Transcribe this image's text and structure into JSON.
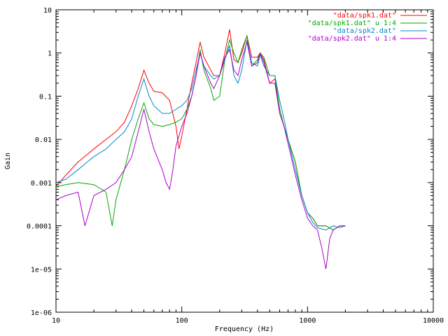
{
  "chart_data": {
    "type": "line",
    "title": "",
    "xlabel": "Frequency (Hz)",
    "ylabel": "Gain",
    "xscale": "log",
    "yscale": "log",
    "xlim": [
      10,
      10000
    ],
    "ylim": [
      1e-06,
      10
    ],
    "grid": false,
    "legend_position": "top-right",
    "x_ticks": [
      {
        "value": 10,
        "label": "10"
      },
      {
        "value": 100,
        "label": "100"
      },
      {
        "value": 1000,
        "label": "1000"
      },
      {
        "value": 10000,
        "label": "10000"
      }
    ],
    "y_ticks": [
      {
        "value": 10,
        "label": "10"
      },
      {
        "value": 1,
        "label": "1"
      },
      {
        "value": 0.1,
        "label": "0.1"
      },
      {
        "value": 0.01,
        "label": "0.01"
      },
      {
        "value": 0.001,
        "label": "0.001"
      },
      {
        "value": 0.0001,
        "label": "0.0001"
      },
      {
        "value": 1e-05,
        "label": "1e-05"
      },
      {
        "value": 1e-06,
        "label": "1e-06"
      }
    ],
    "series": [
      {
        "name": "\"data/spk1.dat\"",
        "color": "#ff0000",
        "points": [
          [
            10,
            0.0008
          ],
          [
            12,
            0.0015
          ],
          [
            15,
            0.003
          ],
          [
            20,
            0.006
          ],
          [
            25,
            0.01
          ],
          [
            30,
            0.015
          ],
          [
            35,
            0.025
          ],
          [
            40,
            0.06
          ],
          [
            45,
            0.15
          ],
          [
            50,
            0.4
          ],
          [
            55,
            0.2
          ],
          [
            60,
            0.13
          ],
          [
            70,
            0.12
          ],
          [
            80,
            0.08
          ],
          [
            90,
            0.02
          ],
          [
            95,
            0.006
          ],
          [
            100,
            0.012
          ],
          [
            110,
            0.05
          ],
          [
            120,
            0.2
          ],
          [
            130,
            0.6
          ],
          [
            140,
            1.8
          ],
          [
            150,
            0.8
          ],
          [
            170,
            0.4
          ],
          [
            180,
            0.3
          ],
          [
            200,
            0.3
          ],
          [
            220,
            1.0
          ],
          [
            240,
            3.5
          ],
          [
            260,
            0.7
          ],
          [
            280,
            0.6
          ],
          [
            300,
            1.0
          ],
          [
            330,
            2.5
          ],
          [
            360,
            0.8
          ],
          [
            400,
            0.8
          ],
          [
            420,
            1.0
          ],
          [
            450,
            0.7
          ],
          [
            500,
            0.2
          ],
          [
            550,
            0.25
          ],
          [
            600,
            0.05
          ],
          [
            650,
            0.02
          ],
          [
            700,
            0.01
          ],
          [
            800,
            0.003
          ],
          [
            900,
            0.0005
          ],
          [
            1000,
            0.0002
          ],
          [
            1100,
            0.00015
          ],
          [
            1200,
            0.0001
          ],
          [
            1400,
            0.0001
          ],
          [
            1600,
            8e-05
          ],
          [
            1800,
            0.0001
          ],
          [
            2000,
            0.0001
          ]
        ]
      },
      {
        "name": "\"data/spk1.dat\" u 1:4",
        "color": "#00aa00",
        "points": [
          [
            10,
            0.0008
          ],
          [
            12,
            0.0009
          ],
          [
            15,
            0.001
          ],
          [
            20,
            0.0009
          ],
          [
            25,
            0.0006
          ],
          [
            28,
            0.0001
          ],
          [
            30,
            0.0004
          ],
          [
            35,
            0.002
          ],
          [
            40,
            0.01
          ],
          [
            45,
            0.03
          ],
          [
            50,
            0.07
          ],
          [
            55,
            0.03
          ],
          [
            60,
            0.022
          ],
          [
            70,
            0.02
          ],
          [
            80,
            0.022
          ],
          [
            90,
            0.025
          ],
          [
            100,
            0.03
          ],
          [
            110,
            0.05
          ],
          [
            120,
            0.1
          ],
          [
            130,
            0.3
          ],
          [
            140,
            1.2
          ],
          [
            150,
            0.4
          ],
          [
            170,
            0.15
          ],
          [
            180,
            0.08
          ],
          [
            200,
            0.1
          ],
          [
            220,
            0.7
          ],
          [
            240,
            2.0
          ],
          [
            260,
            1.0
          ],
          [
            280,
            0.6
          ],
          [
            300,
            1.2
          ],
          [
            330,
            2.5
          ],
          [
            360,
            0.5
          ],
          [
            400,
            0.7
          ],
          [
            420,
            1.0
          ],
          [
            450,
            0.8
          ],
          [
            500,
            0.3
          ],
          [
            550,
            0.3
          ],
          [
            600,
            0.05
          ],
          [
            650,
            0.02
          ],
          [
            700,
            0.01
          ],
          [
            800,
            0.003
          ],
          [
            900,
            0.0005
          ],
          [
            1000,
            0.0002
          ],
          [
            1100,
            0.00015
          ],
          [
            1200,
            0.0001
          ],
          [
            1400,
            0.0001
          ],
          [
            1600,
            8e-05
          ],
          [
            1800,
            0.0001
          ],
          [
            2000,
            0.0001
          ]
        ]
      },
      {
        "name": "\"data/spk2.dat\"",
        "color": "#0088cc",
        "points": [
          [
            10,
            0.001
          ],
          [
            12,
            0.0012
          ],
          [
            15,
            0.002
          ],
          [
            20,
            0.004
          ],
          [
            25,
            0.006
          ],
          [
            30,
            0.01
          ],
          [
            35,
            0.015
          ],
          [
            40,
            0.03
          ],
          [
            45,
            0.1
          ],
          [
            50,
            0.25
          ],
          [
            55,
            0.1
          ],
          [
            60,
            0.06
          ],
          [
            70,
            0.04
          ],
          [
            80,
            0.04
          ],
          [
            90,
            0.05
          ],
          [
            100,
            0.06
          ],
          [
            110,
            0.08
          ],
          [
            120,
            0.15
          ],
          [
            130,
            0.4
          ],
          [
            140,
            1.0
          ],
          [
            150,
            0.5
          ],
          [
            170,
            0.3
          ],
          [
            180,
            0.25
          ],
          [
            200,
            0.3
          ],
          [
            220,
            0.7
          ],
          [
            240,
            1.5
          ],
          [
            260,
            0.3
          ],
          [
            280,
            0.2
          ],
          [
            300,
            0.4
          ],
          [
            330,
            2.0
          ],
          [
            360,
            0.6
          ],
          [
            400,
            0.5
          ],
          [
            420,
            0.9
          ],
          [
            450,
            0.5
          ],
          [
            500,
            0.3
          ],
          [
            550,
            0.3
          ],
          [
            600,
            0.08
          ],
          [
            650,
            0.03
          ],
          [
            700,
            0.01
          ],
          [
            800,
            0.002
          ],
          [
            900,
            0.0005
          ],
          [
            1000,
            0.0002
          ],
          [
            1100,
            0.00012
          ],
          [
            1200,
            9e-05
          ],
          [
            1400,
            8e-05
          ],
          [
            1600,
            0.0001
          ],
          [
            1800,
            9e-05
          ],
          [
            2000,
            0.0001
          ]
        ]
      },
      {
        "name": "\"data/spk2.dat\" u 1:4",
        "color": "#aa00cc",
        "points": [
          [
            10,
            0.0004
          ],
          [
            12,
            0.0005
          ],
          [
            15,
            0.0006
          ],
          [
            17,
            0.0001
          ],
          [
            20,
            0.0005
          ],
          [
            25,
            0.0007
          ],
          [
            30,
            0.001
          ],
          [
            35,
            0.002
          ],
          [
            40,
            0.004
          ],
          [
            45,
            0.015
          ],
          [
            50,
            0.05
          ],
          [
            55,
            0.015
          ],
          [
            60,
            0.006
          ],
          [
            70,
            0.002
          ],
          [
            75,
            0.001
          ],
          [
            80,
            0.0007
          ],
          [
            85,
            0.002
          ],
          [
            90,
            0.007
          ],
          [
            100,
            0.02
          ],
          [
            110,
            0.04
          ],
          [
            120,
            0.1
          ],
          [
            130,
            0.3
          ],
          [
            140,
            1.0
          ],
          [
            150,
            0.5
          ],
          [
            170,
            0.2
          ],
          [
            180,
            0.15
          ],
          [
            200,
            0.3
          ],
          [
            220,
            0.8
          ],
          [
            240,
            1.2
          ],
          [
            260,
            0.4
          ],
          [
            280,
            0.3
          ],
          [
            300,
            0.7
          ],
          [
            330,
            1.8
          ],
          [
            360,
            0.5
          ],
          [
            400,
            0.6
          ],
          [
            420,
            1.0
          ],
          [
            450,
            0.6
          ],
          [
            500,
            0.2
          ],
          [
            550,
            0.2
          ],
          [
            600,
            0.04
          ],
          [
            650,
            0.02
          ],
          [
            700,
            0.008
          ],
          [
            800,
            0.0015
          ],
          [
            900,
            0.0004
          ],
          [
            1000,
            0.00015
          ],
          [
            1100,
            0.0001
          ],
          [
            1200,
            8e-05
          ],
          [
            1300,
            3e-05
          ],
          [
            1400,
            1e-05
          ],
          [
            1500,
            5e-05
          ],
          [
            1600,
            8e-05
          ],
          [
            1800,
            0.0001
          ],
          [
            2000,
            0.0001
          ]
        ]
      }
    ]
  }
}
